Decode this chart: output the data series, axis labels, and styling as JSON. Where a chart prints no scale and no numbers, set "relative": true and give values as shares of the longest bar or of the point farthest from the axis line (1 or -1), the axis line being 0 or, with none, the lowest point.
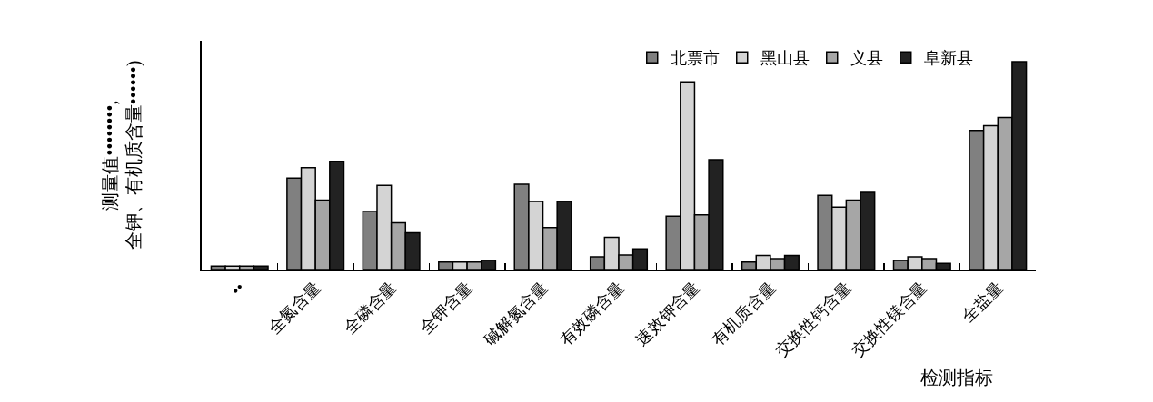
{
  "chart_data": {
    "type": "bar",
    "relative": true,
    "xlabel": "检测指标",
    "ylabel": "测量值••••••••,\n全钾、有机质含量••••••)",
    "categories": [
      "••",
      "全氮含量",
      "全磷含量",
      "全钾含量",
      "碱解氮含量",
      "有效磷含量",
      "速效钾含量",
      "有机质含量",
      "交换性钙含量",
      "交换性镁含量",
      "全盐量"
    ],
    "series": [
      {
        "name": "北票市",
        "color": "#808080",
        "values": [
          0.016,
          0.44,
          0.28,
          0.036,
          0.41,
          0.061,
          0.256,
          0.036,
          0.357,
          0.044,
          0.669
        ]
      },
      {
        "name": "黑山县",
        "color": "#d4d4d4",
        "values": [
          0.016,
          0.49,
          0.405,
          0.036,
          0.327,
          0.155,
          0.903,
          0.068,
          0.3,
          0.061,
          0.692
        ]
      },
      {
        "name": "义县",
        "color": "#a6a6a6",
        "values": [
          0.016,
          0.334,
          0.225,
          0.036,
          0.202,
          0.07,
          0.263,
          0.052,
          0.334,
          0.052,
          0.731
        ]
      },
      {
        "name": "阜新县",
        "color": "#222222",
        "values": [
          0.016,
          0.521,
          0.177,
          0.045,
          0.327,
          0.099,
          0.528,
          0.068,
          0.371,
          0.03,
          1
        ]
      }
    ],
    "legend": "top right"
  }
}
